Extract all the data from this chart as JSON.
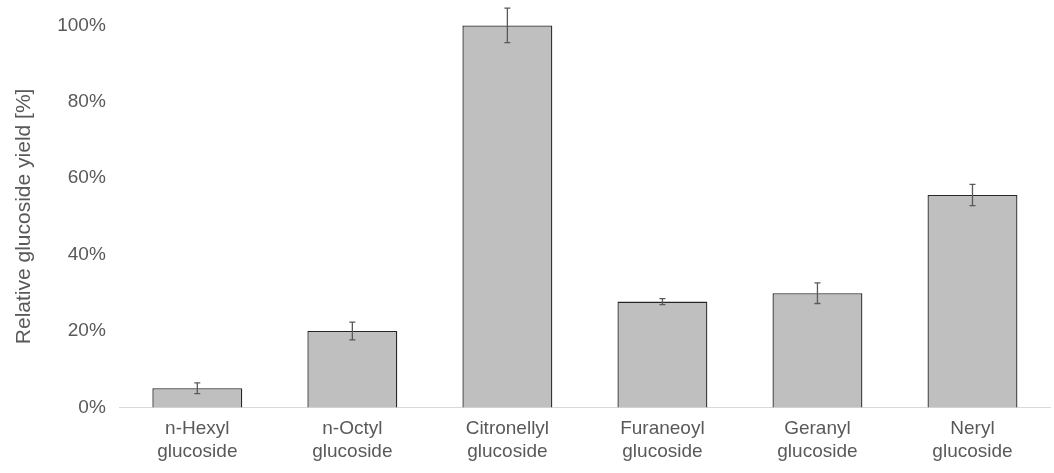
{
  "chart_data": {
    "type": "bar",
    "ylabel": "Relative glucoside yield [%]",
    "categories": [
      "n-Hexyl glucoside",
      "n-Octyl glucoside",
      "Citronellyl glucoside",
      "Furaneoyl glucoside",
      "Geranyl glucoside",
      "Neryl glucoside"
    ],
    "values": [
      5.0,
      20.0,
      100,
      27.7,
      29.9,
      55.6
    ],
    "errors": [
      1.4,
      2.3,
      4.5,
      0.8,
      2.7,
      2.8
    ],
    "color": "#bfbfbf",
    "ylim": [
      0,
      100
    ],
    "yticks": [
      {
        "value": 0,
        "label": "0%"
      },
      {
        "value": 20,
        "label": "20%"
      },
      {
        "value": 40,
        "label": "40%"
      },
      {
        "value": 60,
        "label": "60%"
      },
      {
        "value": 80,
        "label": "80%"
      },
      {
        "value": 100,
        "label": "100%"
      }
    ],
    "grid": false,
    "legend": false
  }
}
